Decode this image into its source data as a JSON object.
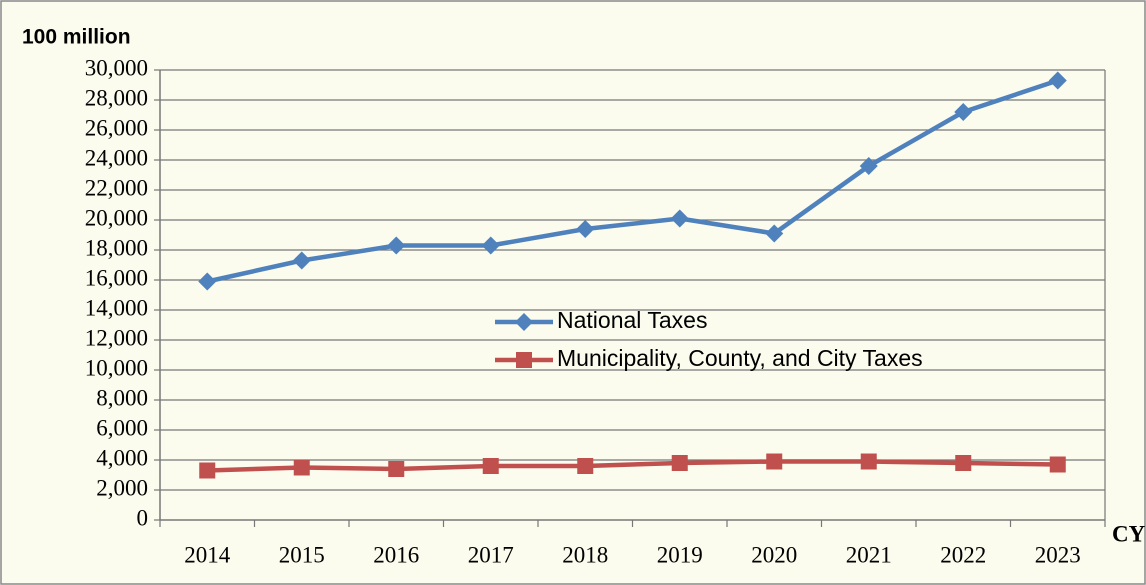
{
  "chart_data": {
    "type": "line",
    "y_label": "100 million",
    "x_label": "CY",
    "categories": [
      "2014",
      "2015",
      "2016",
      "2017",
      "2018",
      "2019",
      "2020",
      "2021",
      "2022",
      "2023"
    ],
    "series": [
      {
        "name": "National Taxes",
        "color": "#4f81bd",
        "marker": "diamond",
        "values": [
          15900,
          17300,
          18300,
          18300,
          19400,
          20100,
          19100,
          23600,
          27200,
          29300
        ]
      },
      {
        "name": "Municipality, County, and City Taxes",
        "color": "#c0504d",
        "marker": "square",
        "values": [
          3300,
          3500,
          3400,
          3600,
          3600,
          3800,
          3900,
          3900,
          3800,
          3700
        ]
      }
    ],
    "ylim": [
      0,
      30000
    ],
    "yticks": [
      0,
      {
        "value": 2000,
        "label": "2,000"
      },
      {
        "value": 4000,
        "label": "4,000"
      },
      {
        "value": 6000,
        "label": "6,000"
      },
      {
        "value": 8000,
        "label": "8,000"
      },
      {
        "value": 10000,
        "label": "10,000"
      },
      {
        "value": 12000,
        "label": "12,000"
      },
      {
        "value": 14000,
        "label": "14,000"
      },
      {
        "value": 16000,
        "label": "16,000"
      },
      {
        "value": 18000,
        "label": "18,000"
      },
      {
        "value": 20000,
        "label": "20,000"
      },
      {
        "value": 22000,
        "label": "22,000"
      },
      {
        "value": 24000,
        "label": "24,000"
      },
      {
        "value": 26000,
        "label": "26,000"
      },
      {
        "value": 28000,
        "label": "28,000"
      },
      {
        "value": 30000,
        "label": "30,000"
      }
    ],
    "grid": true,
    "legend": "center"
  }
}
